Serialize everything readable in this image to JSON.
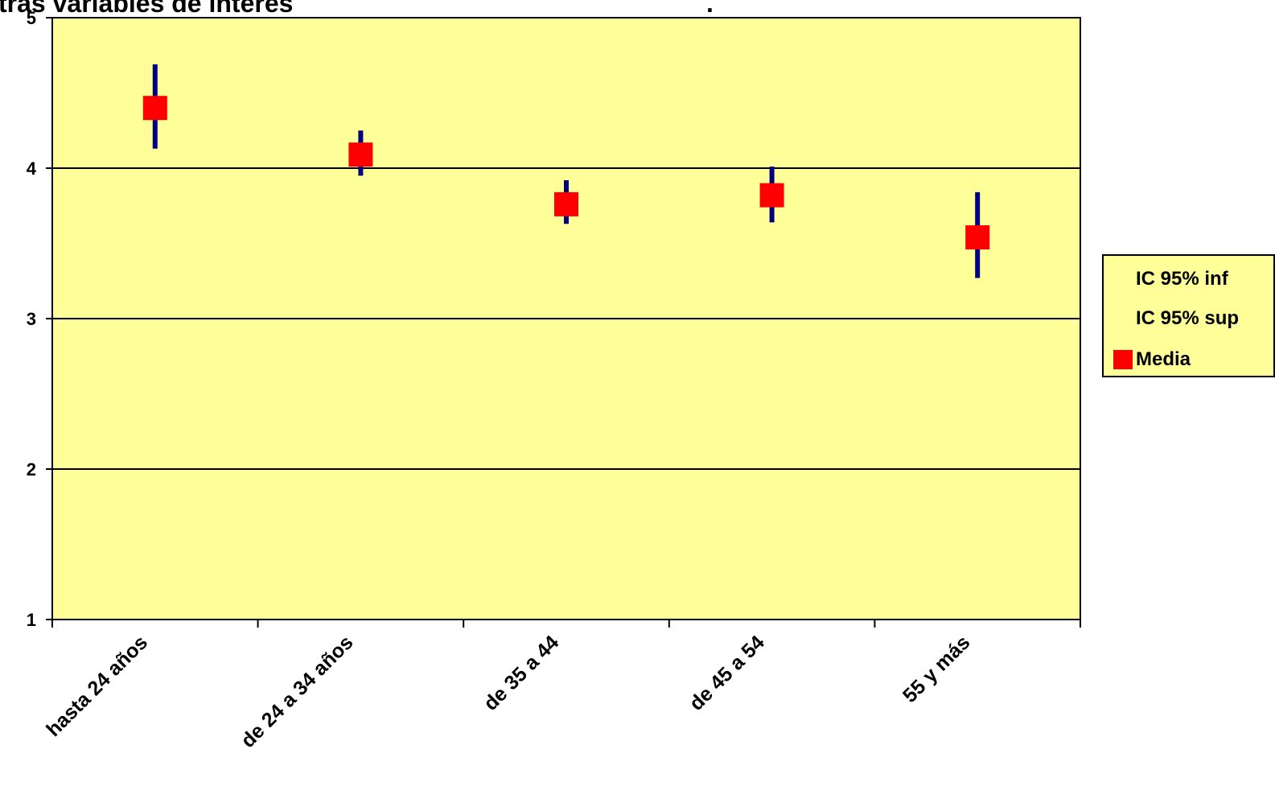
{
  "title_fragments": [
    "tras variables de interés",
    "."
  ],
  "legend": {
    "items": [
      {
        "label": "IC 95% inf",
        "swatch": false
      },
      {
        "label": "IC 95% sup",
        "swatch": false
      },
      {
        "label": "Media",
        "swatch": true,
        "color": "#ff0000"
      }
    ]
  },
  "colors": {
    "plot_background": "#ffff99",
    "error_bar": "#000080",
    "marker": "#ff0000",
    "gridline": "#000000"
  },
  "chart_data": {
    "type": "scatter",
    "title": "tras variables de interés",
    "xlabel": "",
    "ylabel": "",
    "categories": [
      "hasta 24 años",
      "de 24 a 34 años",
      "de 35 a 44",
      "de 45 a 54",
      "55 y más"
    ],
    "ylim": [
      1,
      5
    ],
    "yticks": [
      1,
      2,
      3,
      4,
      5
    ],
    "grid": true,
    "legend_position": "right",
    "series": [
      {
        "name": "IC 95% inf",
        "values": [
          4.13,
          3.95,
          3.63,
          3.64,
          3.27
        ]
      },
      {
        "name": "IC 95% sup",
        "values": [
          4.69,
          4.25,
          3.92,
          4.01,
          3.84
        ]
      },
      {
        "name": "Media",
        "values": [
          4.4,
          4.09,
          3.76,
          3.82,
          3.54
        ]
      }
    ]
  }
}
